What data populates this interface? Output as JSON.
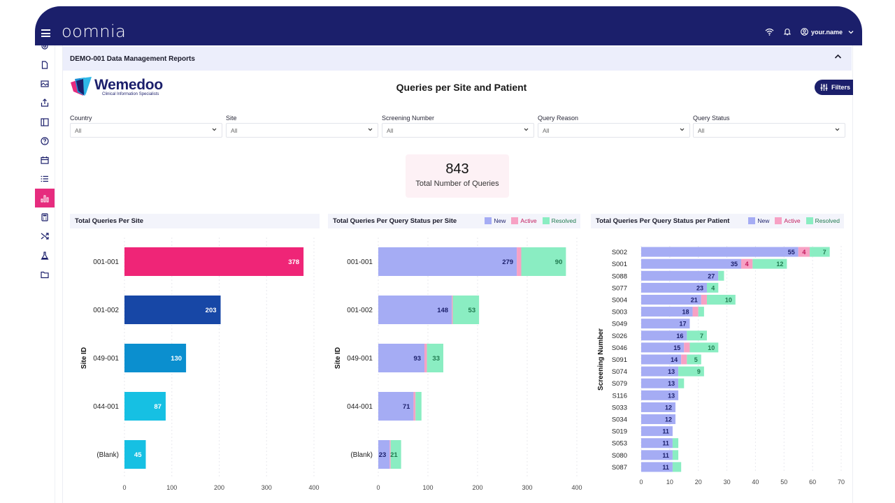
{
  "app": {
    "logo": "oomnia",
    "user": "your.name",
    "icons": [
      "wifi-icon",
      "bell-icon",
      "user-circle-icon",
      "chevron-down-icon"
    ]
  },
  "sidebar": {
    "items": [
      {
        "icon": "settings-icon",
        "active": false
      },
      {
        "icon": "document-icon",
        "active": false
      },
      {
        "icon": "image-icon",
        "active": false
      },
      {
        "icon": "upload-icon",
        "active": false
      },
      {
        "icon": "panel-icon",
        "active": false
      },
      {
        "icon": "help-icon",
        "active": false
      },
      {
        "icon": "calendar-icon",
        "active": false
      },
      {
        "icon": "list-icon",
        "active": false
      },
      {
        "icon": "bar-chart-icon",
        "active": true
      },
      {
        "icon": "calculator-icon",
        "active": false
      },
      {
        "icon": "shuffle-icon",
        "active": false
      },
      {
        "icon": "flask-icon",
        "active": false
      },
      {
        "icon": "folder-icon",
        "active": false
      }
    ]
  },
  "report": {
    "header": "DEMO-001 Data Management Reports",
    "brand_name": "Wemedoo",
    "brand_sub": "Clinical Information Specialists",
    "title": "Queries per Site and Patient",
    "filters_label": "Filters"
  },
  "filters": [
    {
      "label": "Country",
      "value": "All"
    },
    {
      "label": "Site",
      "value": "All"
    },
    {
      "label": "Screening Number",
      "value": "All"
    },
    {
      "label": "Query Reason",
      "value": "All"
    },
    {
      "label": "Query Status",
      "value": "All"
    }
  ],
  "kpi": {
    "value": "843",
    "label": "Total Number of Queries"
  },
  "colors": {
    "new": "#a5acf4",
    "active": "#f7a1c4",
    "resolved": "#8aedc2",
    "new_text": "#1b1f6b",
    "active_text": "#c2185b",
    "resolved_text": "#1f7a4f"
  },
  "chart_data": [
    {
      "type": "bar",
      "orientation": "horizontal",
      "title": "Total Queries Per Site",
      "ylabel": "Site ID",
      "xlabel": "",
      "categories": [
        "001-001",
        "001-002",
        "049-001",
        "044-001",
        "(Blank)"
      ],
      "values": [
        378,
        203,
        130,
        87,
        45
      ],
      "bar_colors": [
        "#ef2577",
        "#1747a6",
        "#0b8fcf",
        "#16c0e3",
        "#16c0e3"
      ],
      "xlim": [
        0,
        400
      ],
      "xticks": [
        0,
        100,
        200,
        300,
        400
      ],
      "grid": true
    },
    {
      "type": "bar",
      "orientation": "horizontal",
      "stacked": true,
      "title": "Total Queries Per Query Status per Site",
      "ylabel": "Site ID",
      "xlabel": "",
      "legend": [
        "New",
        "Active",
        "Resolved"
      ],
      "legend_position": "top-right",
      "categories": [
        "001-001",
        "001-002",
        "049-001",
        "044-001",
        "(Blank)"
      ],
      "series": [
        {
          "name": "New",
          "values": [
            279,
            148,
            93,
            71,
            23
          ]
        },
        {
          "name": "Active",
          "values": [
            9,
            2,
            5,
            4,
            2
          ]
        },
        {
          "name": "Resolved",
          "values": [
            90,
            53,
            33,
            12,
            21
          ]
        }
      ],
      "labels_shown": {
        "New": [
          279,
          148,
          93,
          71,
          23
        ],
        "Active": [
          null,
          null,
          null,
          null,
          null
        ],
        "Resolved": [
          90,
          53,
          33,
          null,
          21
        ]
      },
      "xlim": [
        0,
        400
      ],
      "xticks": [
        0,
        100,
        200,
        300,
        400
      ],
      "grid": true
    },
    {
      "type": "bar",
      "orientation": "horizontal",
      "stacked": true,
      "title": "Total Queries Per Query Status per Patient",
      "ylabel": "Screening Number",
      "xlabel": "",
      "legend": [
        "New",
        "Active",
        "Resolved"
      ],
      "legend_position": "top-right",
      "categories": [
        "S002",
        "S001",
        "S088",
        "S077",
        "S004",
        "S003",
        "S049",
        "S026",
        "S046",
        "S091",
        "S074",
        "S079",
        "S116",
        "S033",
        "S034",
        "S019",
        "S053",
        "S080",
        "S087"
      ],
      "series": [
        {
          "name": "New",
          "values": [
            55,
            35,
            27,
            23,
            21,
            18,
            17,
            16,
            15,
            14,
            13,
            13,
            13,
            12,
            12,
            11,
            11,
            11,
            11
          ]
        },
        {
          "name": "Active",
          "values": [
            4,
            4,
            0,
            0,
            2,
            2,
            0,
            0,
            2,
            2,
            0,
            0,
            0,
            0,
            0,
            0,
            0,
            0,
            0
          ]
        },
        {
          "name": "Resolved",
          "values": [
            7,
            12,
            2,
            4,
            10,
            2,
            0,
            7,
            10,
            5,
            9,
            2,
            0,
            0,
            0,
            0,
            2,
            2,
            3
          ]
        }
      ],
      "labels_shown": {
        "New": [
          55,
          35,
          27,
          23,
          21,
          18,
          17,
          16,
          15,
          14,
          13,
          13,
          13,
          12,
          12,
          11,
          11,
          11,
          11
        ],
        "Active": [
          4,
          4,
          null,
          null,
          null,
          null,
          null,
          null,
          null,
          null,
          null,
          null,
          null,
          null,
          null,
          null,
          null,
          null,
          null
        ],
        "Resolved": [
          7,
          12,
          null,
          4,
          10,
          null,
          null,
          7,
          10,
          5,
          9,
          null,
          null,
          null,
          null,
          null,
          null,
          null,
          null
        ]
      },
      "xlim": [
        0,
        70
      ],
      "xticks": [
        0,
        10,
        20,
        30,
        40,
        50,
        60,
        70
      ],
      "grid": true
    }
  ]
}
